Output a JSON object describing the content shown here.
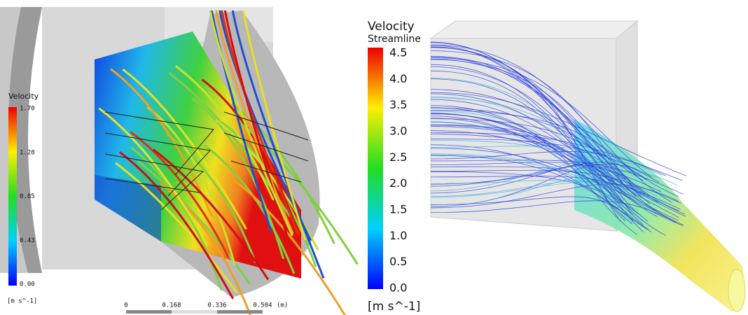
{
  "left_panel": {
    "legend": {
      "title": "Velocity",
      "ticks": [
        "1.70",
        "1.28",
        "0.85",
        "0.43",
        "0.00"
      ],
      "unit": "[m s^-1]"
    },
    "scale_bar": {
      "ticks": [
        "0",
        "0.168",
        "0.336",
        "0.504"
      ],
      "unit": "(m)"
    }
  },
  "right_panel": {
    "legend": {
      "title": "Velocity",
      "subtitle": "Streamline",
      "ticks": [
        "4.5",
        "4.0",
        "3.5",
        "3.0",
        "2.5",
        "2.0",
        "1.5",
        "1.0",
        "0.5",
        "0.0"
      ],
      "unit": "[m s^-1]"
    }
  }
}
